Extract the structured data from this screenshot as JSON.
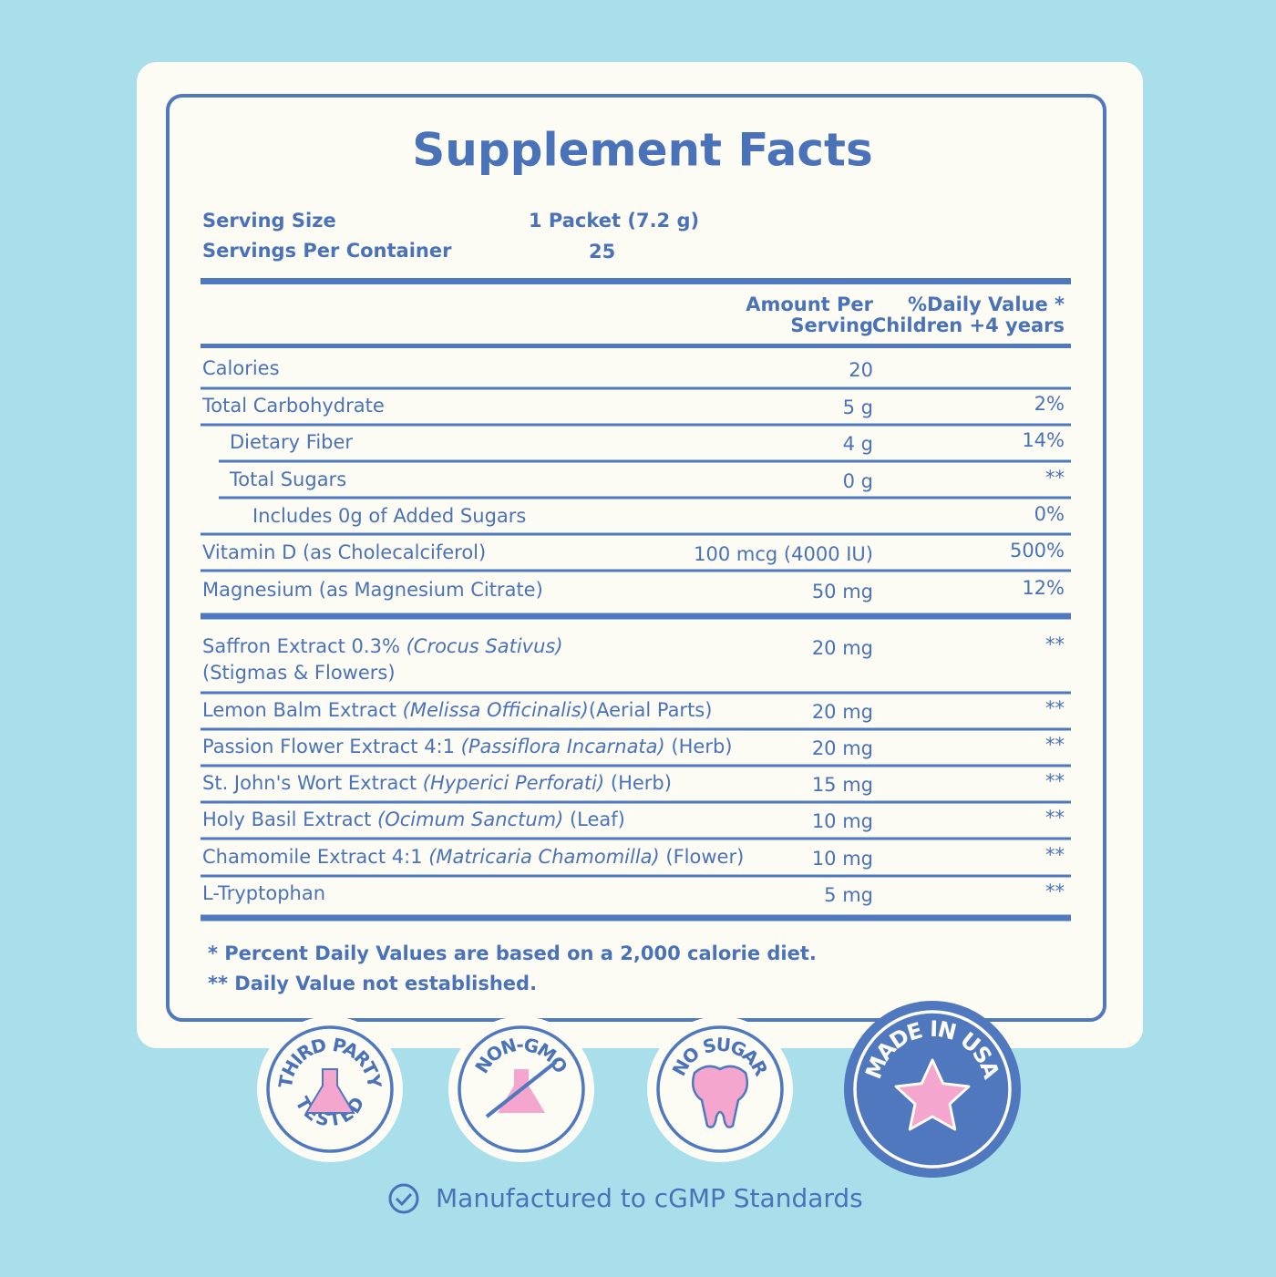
{
  "title": "Supplement Facts",
  "serving": {
    "size_label": "Serving Size",
    "size_value": "1 Packet (7.2 g)",
    "per_container_label": "Servings Per Container",
    "per_container_value": "25"
  },
  "header": {
    "amount_line1": "Amount Per",
    "amount_line2": "Serving",
    "dv_line1": "%Daily Value *",
    "dv_line2": "Children +4 years"
  },
  "rows": [
    {
      "name": "Calories",
      "amount": "20"
    },
    {
      "name": "Total Carbohydrate",
      "amount": "5 g",
      "dv": "2%"
    },
    {
      "name": "Dietary Fiber",
      "amount": "4 g",
      "dv": "14%"
    },
    {
      "name": "Total Sugars",
      "amount": "0 g",
      "dv": "**"
    },
    {
      "name": "Includes 0g of Added Sugars",
      "dv": "0%"
    },
    {
      "name": "Vitamin D (as Cholecalciferol)",
      "amount": "100 mcg (4000 IU)",
      "dv": "500%"
    },
    {
      "name": "Magnesium  (as Magnesium Citrate)",
      "amount": "50 mg",
      "dv": "12%"
    },
    {
      "name": "Saffron Extract 0.3% ",
      "latin": "(Crocus Sativus)",
      "part": "(Stigmas & Flowers)",
      "amount": "20 mg",
      "dv": "**"
    },
    {
      "name": "Lemon Balm Extract ",
      "latin": "(Melissa Officinalis)",
      "part": "(Aerial Parts)",
      "amount": "20 mg",
      "dv": "**"
    },
    {
      "name": "Passion Flower Extract 4:1 ",
      "latin": "(Passiflora Incarnata)",
      "part": " (Herb)",
      "amount": "20 mg",
      "dv": "**"
    },
    {
      "name": "St. John's Wort Extract ",
      "latin": "(Hyperici Perforati)",
      "part": " (Herb)",
      "amount": "15 mg",
      "dv": "**"
    },
    {
      "name": "Holy Basil Extract ",
      "latin": "(Ocimum Sanctum)",
      "part": " (Leaf)",
      "amount": "10 mg",
      "dv": "**"
    },
    {
      "name": "Chamomile Extract 4:1 ",
      "latin": "(Matricaria Chamomilla)",
      "part": " (Flower)",
      "amount": "10 mg",
      "dv": "**"
    },
    {
      "name": "L-Tryptophan",
      "amount": "5 mg",
      "dv": "**"
    }
  ],
  "footnotes": [
    "* Percent Daily Values are based on a 2,000 calorie diet.",
    "** Daily Value not established."
  ],
  "badges": [
    {
      "top": "THIRD PARTY",
      "bottom": "TESTED"
    },
    {
      "top": "NON-GMO"
    },
    {
      "top": "NO SUGAR"
    },
    {
      "top": "MADE IN USA"
    }
  ],
  "footer": "Manufactured to cGMP Standards"
}
